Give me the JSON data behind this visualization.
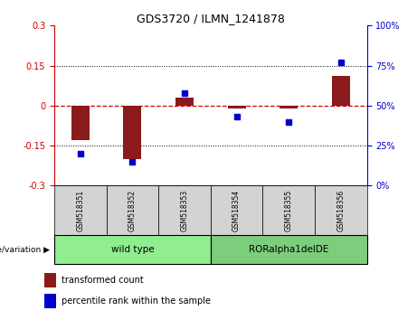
{
  "title": "GDS3720 / ILMN_1241878",
  "samples": [
    "GSM518351",
    "GSM518352",
    "GSM518353",
    "GSM518354",
    "GSM518355",
    "GSM518356"
  ],
  "red_values": [
    -0.13,
    -0.2,
    0.03,
    -0.01,
    -0.01,
    0.11
  ],
  "blue_values": [
    20,
    15,
    58,
    43,
    40,
    77
  ],
  "ylim_left": [
    -0.3,
    0.3
  ],
  "ylim_right": [
    0,
    100
  ],
  "yticks_left": [
    -0.3,
    -0.15,
    0,
    0.15,
    0.3
  ],
  "yticks_right": [
    0,
    25,
    50,
    75,
    100
  ],
  "groups": [
    {
      "label": "wild type",
      "indices": [
        0,
        1,
        2
      ],
      "color": "#90EE90"
    },
    {
      "label": "RORalpha1delDE",
      "indices": [
        3,
        4,
        5
      ],
      "color": "#7CCD7C"
    }
  ],
  "bar_color": "#8B1A1A",
  "dot_color": "#0000CD",
  "bar_width": 0.35,
  "hline_color": "#CC0000",
  "grid_color": "black",
  "legend_red_label": "transformed count",
  "legend_blue_label": "percentile rank within the sample",
  "genotype_label": "genotype/variation",
  "left_axis_color": "#CC0000",
  "right_axis_color": "#0000CC",
  "cell_gray": "#D3D3D3",
  "group_green1": "#90EE90",
  "group_green2": "#7CCD7C"
}
